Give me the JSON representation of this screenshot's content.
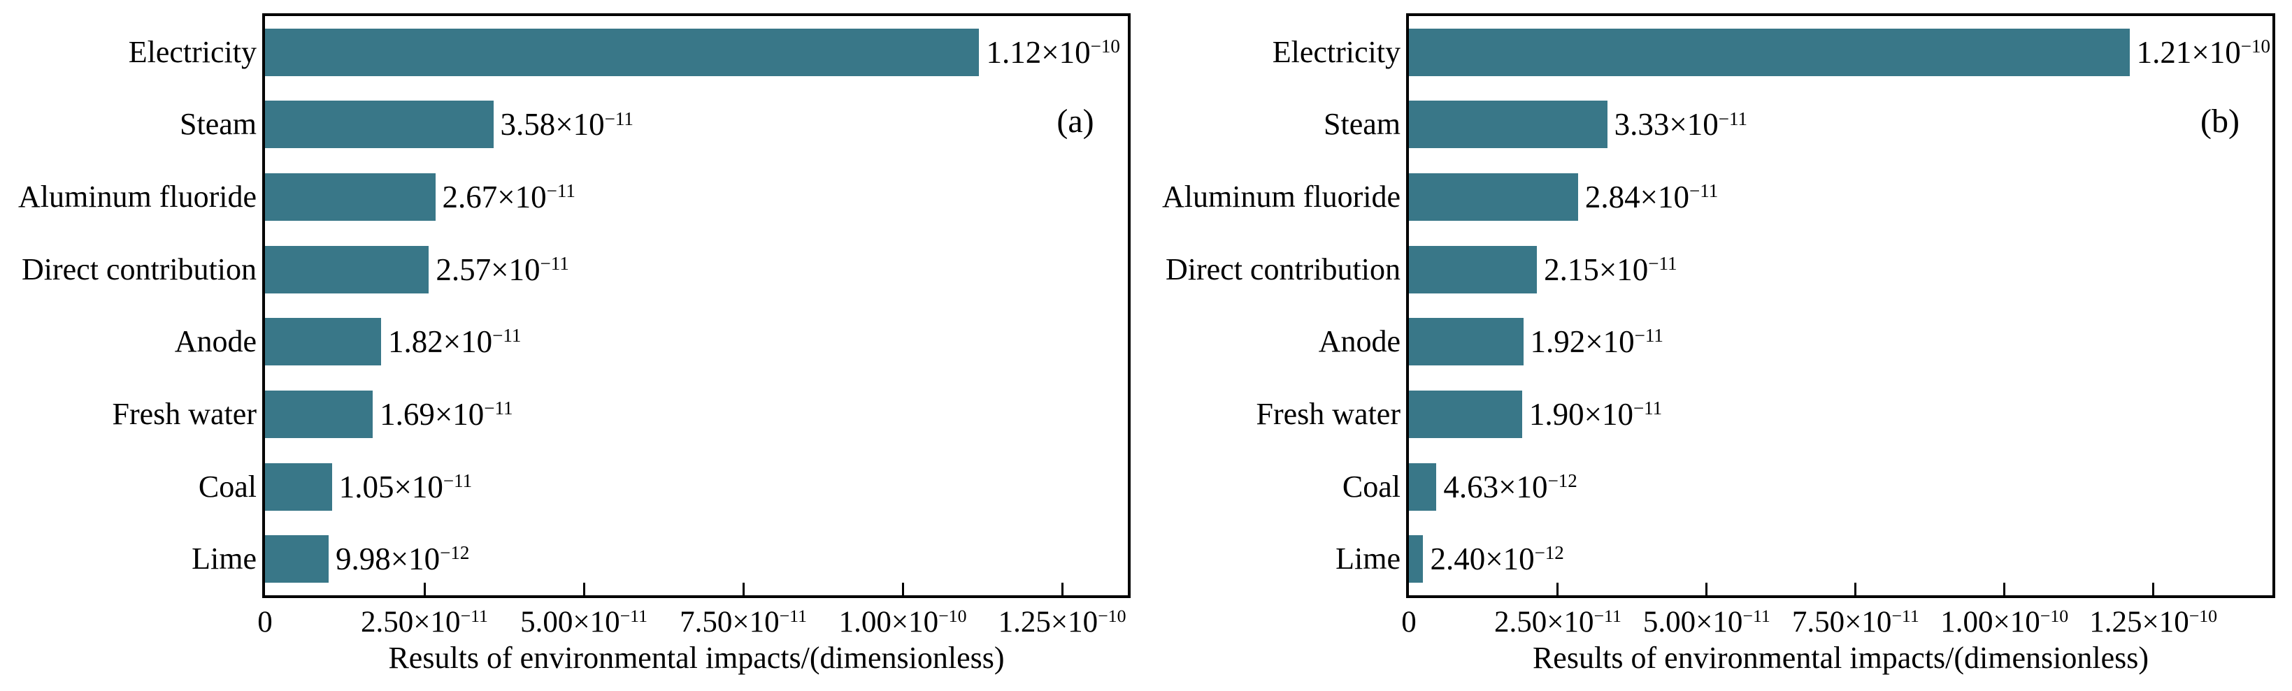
{
  "figure": {
    "background_color": "#ffffff",
    "bar_color": "#397788",
    "axis_color": "#000000",
    "text_color": "#000000"
  },
  "chart_data": [
    {
      "type": "bar",
      "orientation": "horizontal",
      "panel_label": "(a)",
      "xlabel": "Results of environmental impacts/(dimensionless)",
      "categories": [
        "Electricity",
        "Steam",
        "Aluminum fluoride",
        "Direct contribution",
        "Anode",
        "Fresh water",
        "Coal",
        "Lime"
      ],
      "values": [
        1.12e-10,
        3.58e-11,
        2.67e-11,
        2.57e-11,
        1.82e-11,
        1.69e-11,
        1.05e-11,
        9.98e-12
      ],
      "value_labels": [
        "1.12×10^−10",
        "3.58×10^−11",
        "2.67×10^−11",
        "2.57×10^−11",
        "1.82×10^−11",
        "1.69×10^−11",
        "1.05×10^−11",
        "9.98×10^−12"
      ],
      "xlim": [
        0,
        1.353e-10
      ],
      "x_tick_values": [
        0,
        2.5e-11,
        5e-11,
        7.5e-11,
        1e-10,
        1.25e-10
      ],
      "x_tick_labels": [
        "0",
        "2.50×10^−11",
        "5.00×10^−11",
        "7.50×10^−11",
        "1.00×10^−10",
        "1.25×10^−10"
      ],
      "grid": false,
      "legend": null,
      "bar_color": "#397788"
    },
    {
      "type": "bar",
      "orientation": "horizontal",
      "panel_label": "(b)",
      "xlabel": "Results of environmental impacts/(dimensionless)",
      "categories": [
        "Electricity",
        "Steam",
        "Aluminum fluoride",
        "Direct contribution",
        "Anode",
        "Fresh water",
        "Coal",
        "Lime"
      ],
      "values": [
        1.21e-10,
        3.33e-11,
        2.84e-11,
        2.15e-11,
        1.92e-11,
        1.9e-11,
        4.63e-12,
        2.4e-12
      ],
      "value_labels": [
        "1.21×10^−10",
        "3.33×10^−11",
        "2.84×10^−11",
        "2.15×10^−11",
        "1.92×10^−11",
        "1.90×10^−11",
        "4.63×10^−12",
        "2.40×10^−12"
      ],
      "xlim": [
        0,
        1.45e-10
      ],
      "x_tick_values": [
        0,
        2.5e-11,
        5e-11,
        7.5e-11,
        1e-10,
        1.25e-10
      ],
      "x_tick_labels": [
        "0",
        "2.50×10^−11",
        "5.00×10^−11",
        "7.50×10^−11",
        "1.00×10^−10",
        "1.25×10^−10"
      ],
      "grid": false,
      "legend": null,
      "bar_color": "#397788"
    }
  ]
}
